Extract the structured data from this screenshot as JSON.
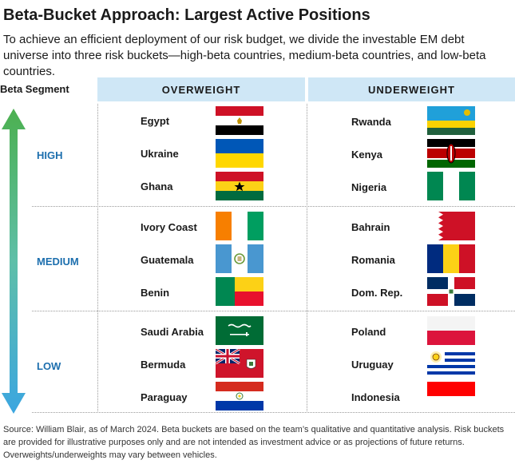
{
  "title": "Beta-Bucket Approach: Largest Active Positions",
  "subtitle": "To achieve an efficient deployment of our risk budget, we divide the investable EM debt universe into three risk buckets—high-beta countries, medium-beta countries, and low-beta countries.",
  "table": {
    "segment_label": "Beta Segment",
    "overweight_header": "OVERWEIGHT",
    "underweight_header": "UNDERWEIGHT",
    "buckets": [
      {
        "label": "HIGH",
        "overweight": [
          {
            "name": "Egypt",
            "flag": "egypt-flag"
          },
          {
            "name": "Ukraine",
            "flag": "ukraine-flag"
          },
          {
            "name": "Ghana",
            "flag": "ghana-flag"
          }
        ],
        "underweight": [
          {
            "name": "Rwanda",
            "flag": "rwanda-flag"
          },
          {
            "name": "Kenya",
            "flag": "kenya-flag"
          },
          {
            "name": "Nigeria",
            "flag": "nigeria-flag"
          }
        ]
      },
      {
        "label": "MEDIUM",
        "overweight": [
          {
            "name": "Ivory Coast",
            "flag": "ivory-coast-flag"
          },
          {
            "name": "Guatemala",
            "flag": "guatemala-flag"
          },
          {
            "name": "Benin",
            "flag": "benin-flag"
          }
        ],
        "underweight": [
          {
            "name": "Bahrain",
            "flag": "bahrain-flag"
          },
          {
            "name": "Romania",
            "flag": "romania-flag"
          },
          {
            "name": "Dom. Rep.",
            "flag": "dominican-republic-flag"
          }
        ]
      },
      {
        "label": "LOW",
        "overweight": [
          {
            "name": "Saudi Arabia",
            "flag": "saudi-arabia-flag"
          },
          {
            "name": "Bermuda",
            "flag": "bermuda-flag"
          },
          {
            "name": "Paraguay",
            "flag": "paraguay-flag"
          }
        ],
        "underweight": [
          {
            "name": "Poland",
            "flag": "poland-flag"
          },
          {
            "name": "Uruguay",
            "flag": "uruguay-flag"
          },
          {
            "name": "Indonesia",
            "flag": "indonesia-flag"
          }
        ]
      }
    ]
  },
  "source": "Source: William Blair, as of March 2024. Beta buckets are based on the team’s qualitative and quantitative analysis. Risk buckets are provided for illustrative purposes only and are not intended as investment advice or as projections of future returns. Overweights/underweights may vary between vehicles.",
  "colors": {
    "header_bg": "#cfe7f6",
    "bucket_label": "#1d6fae",
    "arrow_top": "#4cb050",
    "arrow_bottom": "#3ba6e0"
  }
}
